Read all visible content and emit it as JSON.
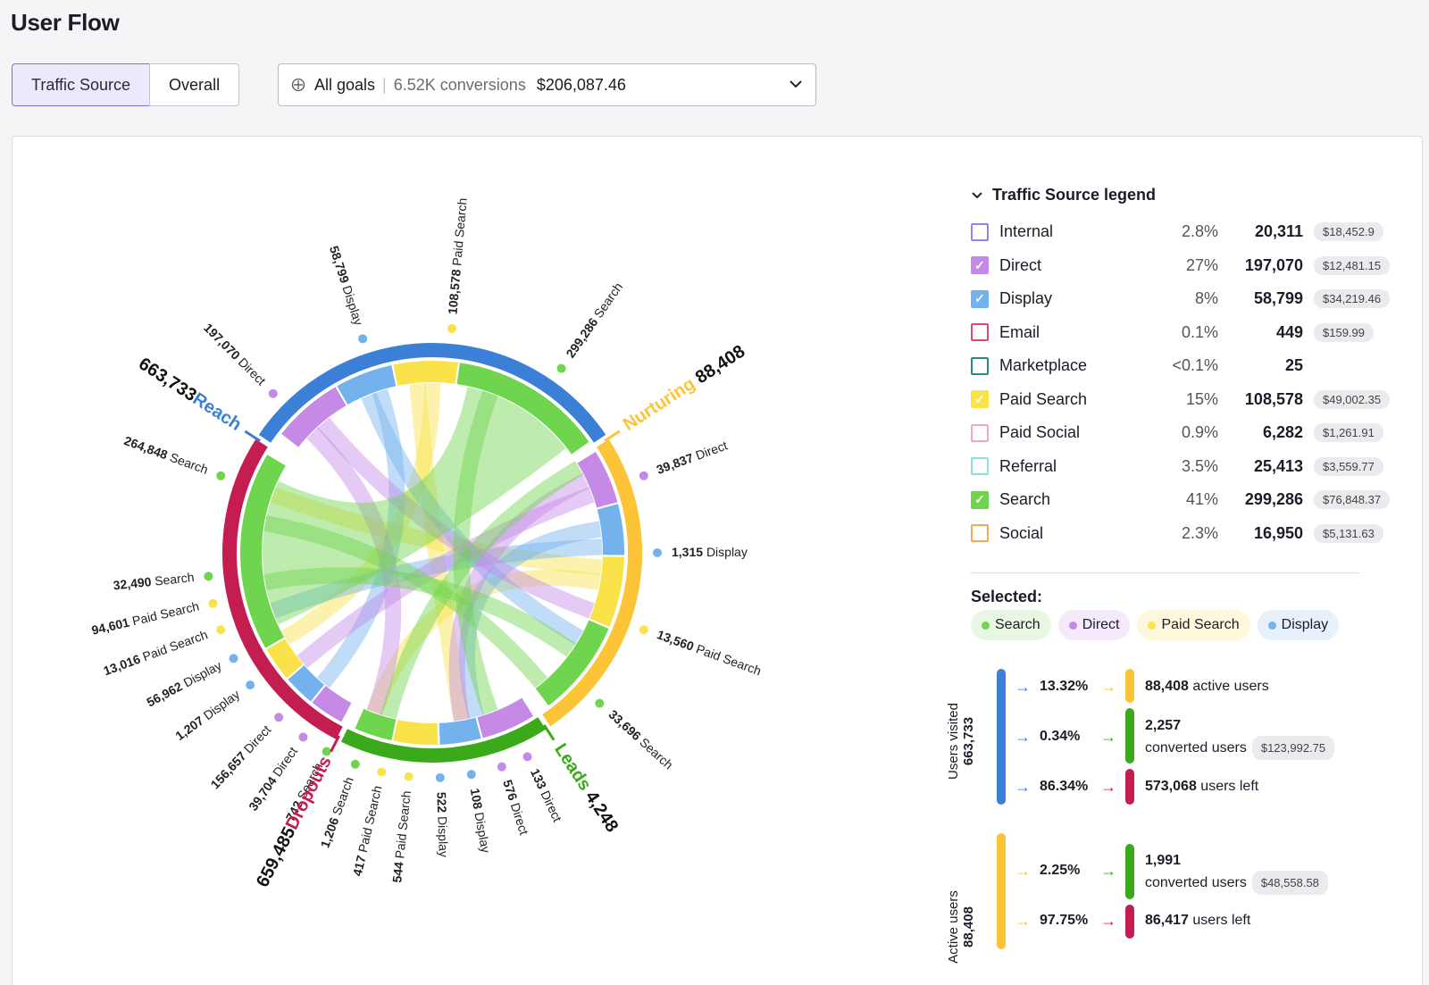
{
  "page_title": "User Flow",
  "tabs": [
    {
      "label": "Traffic Source",
      "active": true
    },
    {
      "label": "Overall",
      "active": false
    }
  ],
  "goals": {
    "icon": "target-icon",
    "label": "All goals",
    "conversions": "6.52K conversions",
    "amount": "$206,087.46"
  },
  "colors": {
    "reach": "#3c7fd6",
    "nurturing": "#fcc436",
    "leads": "#3aaa1a",
    "dropouts": "#c41d4f",
    "search": "#6fd44e",
    "direct": "#c48ae6",
    "display": "#74b2ee",
    "paid_search": "#f9e24a"
  },
  "chart_data": {
    "type": "chord",
    "stages": [
      {
        "name": "Reach",
        "value": "663,733",
        "color": "#3c7fd6"
      },
      {
        "name": "Nurturing",
        "value": "88,408",
        "color": "#fcc436"
      },
      {
        "name": "Leads",
        "value": "4,248",
        "color": "#3aaa1a"
      },
      {
        "name": "Dropouts",
        "value": "659,485",
        "color": "#c41d4f"
      }
    ],
    "labels": [
      {
        "value": "108,578",
        "text": "Paid Search",
        "color": "#f9e24a"
      },
      {
        "value": "58,799",
        "text": "Display",
        "color": "#74b2ee"
      },
      {
        "value": "197,070",
        "text": "Direct",
        "color": "#c48ae6"
      },
      {
        "value": "299,286",
        "text": "Search",
        "color": "#6fd44e"
      },
      {
        "value": "39,837",
        "text": "Direct",
        "color": "#c48ae6"
      },
      {
        "value": "1,315",
        "text": "Display",
        "color": "#74b2ee"
      },
      {
        "value": "13,560",
        "text": "Paid Search",
        "color": "#f9e24a"
      },
      {
        "value": "33,696",
        "text": "Search",
        "color": "#6fd44e"
      },
      {
        "value": "133",
        "text": "Direct",
        "color": "#c48ae6"
      },
      {
        "value": "576",
        "text": "Direct",
        "color": "#c48ae6"
      },
      {
        "value": "108",
        "text": "Display",
        "color": "#74b2ee"
      },
      {
        "value": "522",
        "text": "Display",
        "color": "#74b2ee"
      },
      {
        "value": "544",
        "text": "Paid Search",
        "color": "#f9e24a"
      },
      {
        "value": "417",
        "text": "Paid Search",
        "color": "#f9e24a"
      },
      {
        "value": "1,206",
        "text": "Search",
        "color": "#6fd44e"
      },
      {
        "value": "742",
        "text": "Search",
        "color": "#6fd44e"
      },
      {
        "value": "39,704",
        "text": "Direct",
        "color": "#c48ae6"
      },
      {
        "value": "156,657",
        "text": "Direct",
        "color": "#c48ae6"
      },
      {
        "value": "1,207",
        "text": "Display",
        "color": "#74b2ee"
      },
      {
        "value": "56,962",
        "text": "Display",
        "color": "#74b2ee"
      },
      {
        "value": "13,016",
        "text": "Paid Search",
        "color": "#f9e24a"
      },
      {
        "value": "94,601",
        "text": "Paid Search",
        "color": "#f9e24a"
      },
      {
        "value": "32,490",
        "text": "Search",
        "color": "#6fd44e"
      },
      {
        "value": "264,848",
        "text": "Search",
        "color": "#6fd44e"
      }
    ]
  },
  "legend": {
    "title": "Traffic Source legend",
    "items": [
      {
        "name": "Internal",
        "pct": "2.8%",
        "value": "20,311",
        "money": "$18,452.9",
        "color": "#8f87e6",
        "checked": false
      },
      {
        "name": "Direct",
        "pct": "27%",
        "value": "197,070",
        "money": "$12,481.15",
        "color": "#c48ae6",
        "checked": true
      },
      {
        "name": "Display",
        "pct": "8%",
        "value": "58,799",
        "money": "$34,219.46",
        "color": "#74b2ee",
        "checked": true
      },
      {
        "name": "Email",
        "pct": "0.1%",
        "value": "449",
        "money": "$159.99",
        "color": "#d84a6e",
        "checked": false
      },
      {
        "name": "Marketplace",
        "pct": "<0.1%",
        "value": "25",
        "money": "",
        "color": "#2a8a7a",
        "checked": false
      },
      {
        "name": "Paid Search",
        "pct": "15%",
        "value": "108,578",
        "money": "$49,002.35",
        "color": "#f9e24a",
        "checked": true
      },
      {
        "name": "Paid Social",
        "pct": "0.9%",
        "value": "6,282",
        "money": "$1,261.91",
        "color": "#f0a7bf",
        "checked": false
      },
      {
        "name": "Referral",
        "pct": "3.5%",
        "value": "25,413",
        "money": "$3,559.77",
        "color": "#8fe0d6",
        "checked": false
      },
      {
        "name": "Search",
        "pct": "41%",
        "value": "299,286",
        "money": "$76,848.37",
        "color": "#6fd44e",
        "checked": true
      },
      {
        "name": "Social",
        "pct": "2.3%",
        "value": "16,950",
        "money": "$5,131.63",
        "color": "#f3a955",
        "checked": false
      }
    ]
  },
  "selected": {
    "label": "Selected:",
    "chips": [
      {
        "name": "Search",
        "color": "#6fd44e",
        "bg": "#e8f7e2"
      },
      {
        "name": "Direct",
        "color": "#c48ae6",
        "bg": "#f4eafb"
      },
      {
        "name": "Paid Search",
        "color": "#f9e24a",
        "bg": "#fdf8dc"
      },
      {
        "name": "Display",
        "color": "#74b2ee",
        "bg": "#e6f1fc"
      }
    ]
  },
  "flow": {
    "users_visited": {
      "label": "Users visited",
      "value": "663,733"
    },
    "active_users": {
      "label": "Active users",
      "value": "88,408"
    },
    "rows": [
      {
        "pct": "13.32%",
        "value": "88,408",
        "text": "active users",
        "money": ""
      },
      {
        "pct": "0.34%",
        "value": "2,257",
        "text": "converted users",
        "money": "$123,992.75"
      },
      {
        "pct": "86.34%",
        "value": "573,068",
        "text": "users left",
        "money": ""
      },
      {
        "pct": "2.25%",
        "value": "1,991",
        "text": "converted users",
        "money": "$48,558.58"
      },
      {
        "pct": "97.75%",
        "value": "86,417",
        "text": "users left",
        "money": ""
      }
    ]
  }
}
